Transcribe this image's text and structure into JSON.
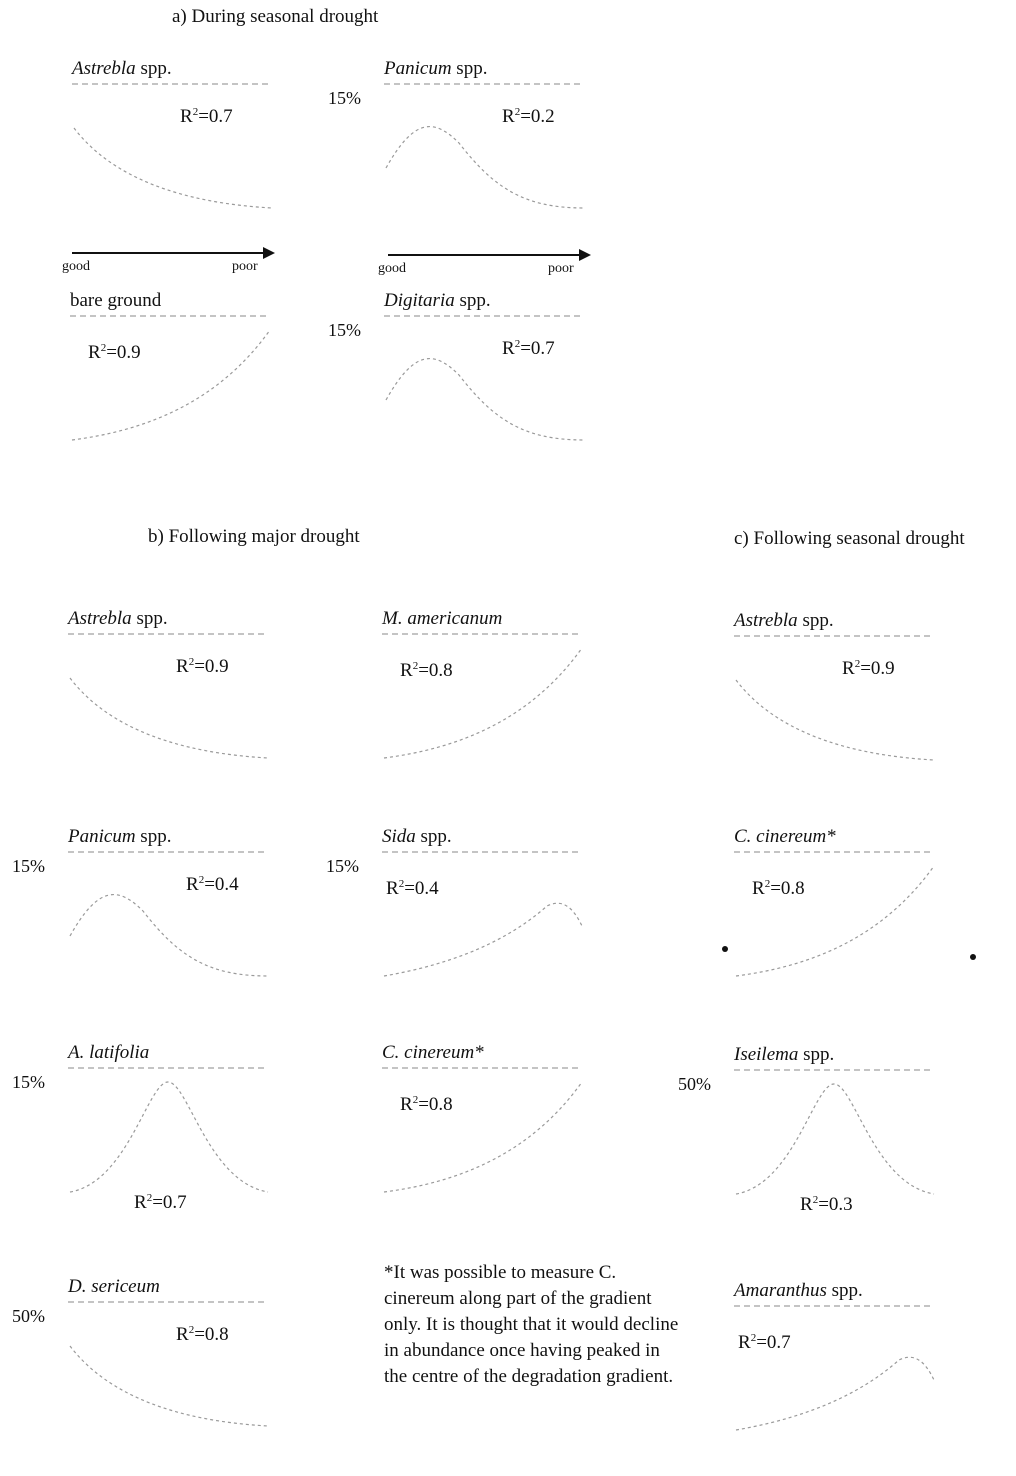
{
  "sections": {
    "a": "a) During seasonal drought",
    "b": "b) Following major drought",
    "c": "c) Following seasonal drought"
  },
  "gradient": {
    "good": "good",
    "poor": "poor"
  },
  "panels": [
    {
      "id": "a1",
      "name_italic": "Astrebla",
      "name_rest": " spp.",
      "r2": "0.7",
      "pct": "",
      "shape": "decline"
    },
    {
      "id": "a2",
      "name_italic": "Panicum",
      "name_rest": " spp.",
      "r2": "0.2",
      "pct": "15%",
      "shape": "peak-early"
    },
    {
      "id": "a3",
      "name_italic": "",
      "name_rest": "bare ground",
      "r2": "0.9",
      "pct": "",
      "shape": "increase"
    },
    {
      "id": "a4",
      "name_italic": "Digitaria",
      "name_rest": " spp.",
      "r2": "0.7",
      "pct": "15%",
      "shape": "peak-early"
    },
    {
      "id": "b1",
      "name_italic": "Astrebla",
      "name_rest": " spp.",
      "r2": "0.9",
      "pct": "",
      "shape": "decline"
    },
    {
      "id": "b2",
      "name_italic": "M. americanum",
      "name_rest": "",
      "r2": "0.8",
      "pct": "",
      "shape": "increase"
    },
    {
      "id": "b3",
      "name_italic": "Panicum",
      "name_rest": " spp.",
      "r2": "0.4",
      "pct": "15%",
      "shape": "peak-early"
    },
    {
      "id": "b4",
      "name_italic": "Sida",
      "name_rest": " spp.",
      "r2": "0.4",
      "pct": "15%",
      "shape": "peak-late"
    },
    {
      "id": "b5",
      "name_italic": "A. latifolia",
      "name_rest": "",
      "r2": "0.7",
      "pct": "15%",
      "shape": "peak-mid"
    },
    {
      "id": "b6",
      "name_italic": "C. cinereum*",
      "name_rest": "",
      "r2": "0.8",
      "pct": "",
      "shape": "increase"
    },
    {
      "id": "b7",
      "name_italic": "D. sericeum",
      "name_rest": "",
      "r2": "0.8",
      "pct": "50%",
      "shape": "decline"
    },
    {
      "id": "c1",
      "name_italic": "Astrebla",
      "name_rest": " spp.",
      "r2": "0.9",
      "pct": "",
      "shape": "decline"
    },
    {
      "id": "c2",
      "name_italic": "C. cinereum*",
      "name_rest": "",
      "r2": "0.8",
      "pct": "",
      "shape": "increase"
    },
    {
      "id": "c3",
      "name_italic": "Iseilema",
      "name_rest": " spp.",
      "r2": "0.3",
      "pct": "50%",
      "shape": "peak-mid"
    },
    {
      "id": "c4",
      "name_italic": "Amaranthus",
      "name_rest": " spp.",
      "r2": "0.7",
      "pct": "",
      "shape": "peak-late"
    }
  ],
  "footnote": "*It was possible to measure C. cinereum along part of the gradient only. It is thought that it would decline in abundance once having peaked in the centre of the degradation gradient."
}
